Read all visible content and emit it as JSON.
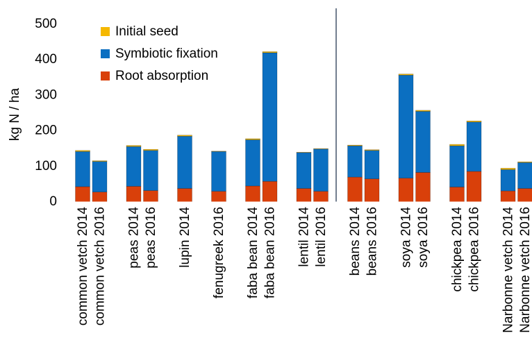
{
  "chart_data": {
    "type": "stacked_bar",
    "y_label": "kg N / ha",
    "categories": [
      "common vetch 2014",
      "common vetch 2016",
      "peas 2014",
      "peas 2016",
      "lupin 2014",
      "fenugreek 2016",
      "faba bean 2014",
      "faba bean 2016",
      "lentil 2014",
      "lentil 2016",
      "beans 2014",
      "beans 2016",
      "soya 2014",
      "soya 2016",
      "chickpea 2014",
      "chickpea 2016",
      "Narbonne vetch 2014",
      "Narbonne vetch 2016"
    ],
    "series": [
      {
        "name": "Root absorption",
        "color": "#d9400a",
        "values": [
          43,
          28,
          44,
          32,
          38,
          30,
          45,
          58,
          38,
          30,
          70,
          65,
          67,
          83,
          42,
          86,
          31,
          38
        ]
      },
      {
        "name": "Symbiotic fixation",
        "color": "#0b6fc1",
        "values": [
          99,
          86,
          112,
          113,
          147,
          112,
          130,
          362,
          101,
          119,
          88,
          80,
          290,
          172,
          116,
          139,
          60,
          73
        ]
      },
      {
        "name": "Initial seed",
        "color": "#f5b800",
        "values": [
          3,
          2,
          3,
          3,
          3,
          1,
          3,
          3,
          1,
          1,
          2,
          2,
          3,
          3,
          4,
          3,
          4,
          2
        ]
      }
    ],
    "ylim": [
      0,
      500
    ],
    "yticks": [
      0,
      100,
      200,
      300,
      400,
      500
    ]
  }
}
